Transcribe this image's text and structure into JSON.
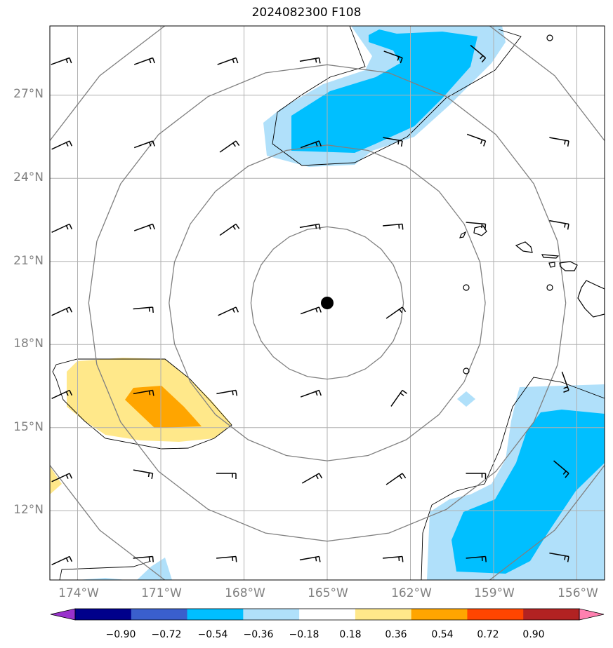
{
  "title": "2024082300 F108",
  "map": {
    "lat_range": [
      9.5,
      29.5
    ],
    "lon_range": [
      -175,
      -155
    ],
    "lat_tick_labels": [
      "27°N",
      "24°N",
      "21°N",
      "18°N",
      "15°N",
      "12°N"
    ],
    "lon_tick_labels": [
      "174°W",
      "171°W",
      "168°W",
      "165°W",
      "162°W",
      "159°W",
      "156°W"
    ],
    "storm_center": {
      "lat": 19.5,
      "lon": -165
    },
    "range_rings_deg": [
      2.75,
      5.7,
      8.6,
      11.6
    ],
    "gridline_color": "#b0b0b0",
    "ring_color": "#808080"
  },
  "colorbar": {
    "tick_labels": [
      "−0.90",
      "−0.72",
      "−0.54",
      "−0.36",
      "−0.18",
      "0.18",
      "0.36",
      "0.54",
      "0.72",
      "0.90"
    ],
    "colors": [
      "#9932cc",
      "#00008b",
      "#3a5fcd",
      "#00bfff",
      "#b0e0fa",
      "#ffffff",
      "#ffe88a",
      "#ffa500",
      "#ff4500",
      "#b22222",
      "#ff80b0"
    ]
  },
  "icons": {
    "storm_center": "storm-center-dot-icon",
    "wind_barb": "wind-barb-icon"
  }
}
